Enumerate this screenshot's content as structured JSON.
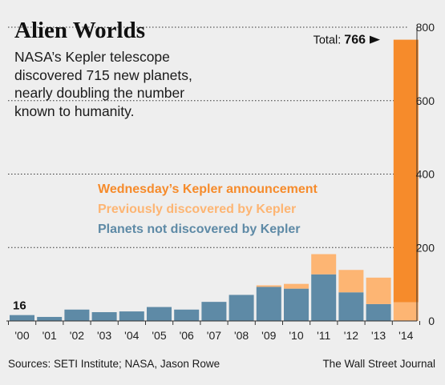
{
  "title": "Alien Worlds",
  "subtitle": "NASA’s Kepler telescope discovered 715 new planets, nearly doubling the number known to humanity.",
  "legend": [
    {
      "label": "Wednesday’s Kepler announcement",
      "color": "#f68b2b"
    },
    {
      "label": "Previously discovered by Kepler",
      "color": "#fdb573"
    },
    {
      "label": "Planets not discovered by Kepler",
      "color": "#5e8aa6"
    }
  ],
  "annotations": {
    "total_prefix": "Total:",
    "total_value": "766",
    "first_value": "16"
  },
  "footer": {
    "sources": "Sources: SETI Institute; NASA, Jason Rowe",
    "credit": "The Wall Street Journal"
  },
  "chart_data": {
    "type": "bar",
    "stacked": true,
    "categories": [
      "'00",
      "'01",
      "'02",
      "'03",
      "'04",
      "'05",
      "'06",
      "'07",
      "'08",
      "'09",
      "'10",
      "'11",
      "'12",
      "'13",
      "'14"
    ],
    "series": [
      {
        "name": "Planets not discovered by Kepler",
        "color": "#5e8aa6",
        "values": [
          16,
          11,
          31,
          24,
          26,
          38,
          31,
          52,
          71,
          93,
          88,
          127,
          78,
          46,
          0
        ]
      },
      {
        "name": "Previously discovered by Kepler",
        "color": "#fdb573",
        "values": [
          0,
          0,
          0,
          0,
          0,
          0,
          0,
          0,
          0,
          4,
          13,
          55,
          61,
          72,
          51
        ]
      },
      {
        "name": "Wednesday’s Kepler announcement",
        "color": "#f68b2b",
        "values": [
          0,
          0,
          0,
          0,
          0,
          0,
          0,
          0,
          0,
          0,
          0,
          0,
          0,
          0,
          715
        ]
      }
    ],
    "yticks": [
      0,
      200,
      400,
      600,
      800
    ],
    "ylim": [
      0,
      800
    ],
    "grid": "dotted",
    "axis_position": "right"
  }
}
